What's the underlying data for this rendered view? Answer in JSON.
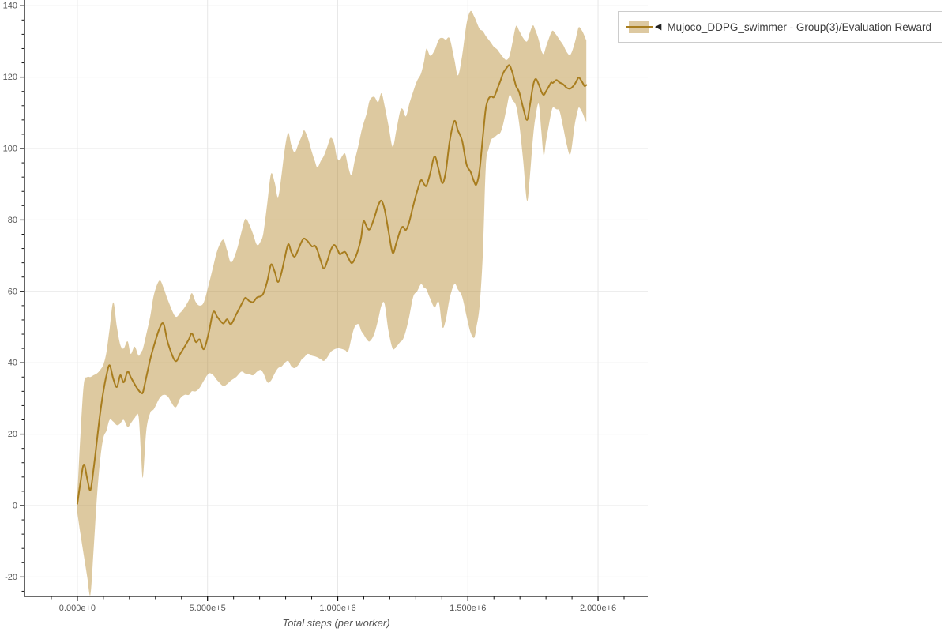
{
  "legend": {
    "collapse_icon": "◀",
    "label": "Mujoco_DDPG_swimmer - Group(3)/Evaluation Reward"
  },
  "colors": {
    "line": "#a87d1e",
    "band": "rgba(180,135,45,0.45)",
    "band_solid": "#ddc9a1",
    "grid": "#e7e7e7",
    "axis": "#111111",
    "tick_label": "#555555"
  },
  "chart_data": {
    "type": "line",
    "title": "",
    "xlabel": "Total steps (per worker)",
    "ylabel": "",
    "xlim": [
      -203000,
      2191000
    ],
    "ylim": [
      -25.45,
      141.6
    ],
    "grid": true,
    "legend_position": "top-right-outside",
    "axes": {
      "x_tick_values": [
        0,
        500000,
        1000000,
        1500000,
        2000000
      ],
      "x_tick_labels": [
        "0.000e+0",
        "5.000e+5",
        "1.000e+6",
        "1.500e+6",
        "2.000e+6"
      ],
      "y_tick_values": [
        -20,
        0,
        20,
        40,
        60,
        80,
        100,
        120,
        140
      ],
      "y_tick_labels": [
        "-20",
        "0",
        "20",
        "40",
        "60",
        "80",
        "100",
        "120",
        "140"
      ],
      "x_minor_step": 100000,
      "x_minor_range": [
        -100000,
        2100000
      ],
      "y_minor_step": 4,
      "y_minor_range": [
        -24,
        140
      ]
    },
    "series": [
      {
        "name": "Mujoco_DDPG_swimmer - Group(3)/Evaluation Reward",
        "x": [
          0,
          12000,
          25000,
          38000,
          50000,
          62000,
          75000,
          88000,
          100000,
          112000,
          124000,
          138000,
          152000,
          165000,
          178000,
          193000,
          205000,
          220000,
          235000,
          245000,
          252000,
          265000,
          280000,
          294000,
          315000,
          331000,
          348000,
          376000,
          395000,
          412000,
          428000,
          440000,
          455000,
          470000,
          486000,
          505000,
          522000,
          538000,
          560000,
          575000,
          590000,
          610000,
          630000,
          645000,
          660000,
          675000,
          690000,
          704000,
          715000,
          730000,
          744000,
          758000,
          771000,
          785000,
          797000,
          810000,
          822000,
          835000,
          850000,
          862000,
          871000,
          885000,
          901000,
          912000,
          922000,
          935000,
          947000,
          960000,
          973000,
          986000,
          997000,
          1008000,
          1018000,
          1029000,
          1040000,
          1053000,
          1065000,
          1080000,
          1090000,
          1099000,
          1112000,
          1123000,
          1140000,
          1155000,
          1168000,
          1180000,
          1195000,
          1211000,
          1225000,
          1240000,
          1250000,
          1262000,
          1275000,
          1290000,
          1305000,
          1320000,
          1332000,
          1341000,
          1355000,
          1372000,
          1388000,
          1402000,
          1415000,
          1430000,
          1448000,
          1462000,
          1478000,
          1495000,
          1510000,
          1524000,
          1533000,
          1545000,
          1557000,
          1569000,
          1580000,
          1590000,
          1600000,
          1612000,
          1625000,
          1636000,
          1648000,
          1660000,
          1672000,
          1685000,
          1697000,
          1712000,
          1727000,
          1738000,
          1750000,
          1760000,
          1772000,
          1782000,
          1791000,
          1800000,
          1812000,
          1820000,
          1827000,
          1840000,
          1852000,
          1866000,
          1880000,
          1894000,
          1910000,
          1920000,
          1927000,
          1940000,
          1948000,
          1955000
        ],
        "mean": [
          0.5,
          6.5,
          11.5,
          7.5,
          4.3,
          10,
          18,
          26,
          32,
          36.5,
          39.3,
          35.5,
          33.2,
          36.5,
          34.5,
          37.5,
          36,
          34,
          32.3,
          31.6,
          31.8,
          36,
          41,
          44.7,
          49.5,
          50.9,
          45.5,
          40.5,
          42.5,
          44.5,
          46.5,
          48.2,
          45.8,
          46.5,
          43.8,
          48.5,
          54.2,
          52.8,
          51,
          52.2,
          50.8,
          53.5,
          56.3,
          58.2,
          57.3,
          57,
          58.3,
          58.6,
          59.5,
          63,
          67.5,
          65.5,
          62.6,
          65.5,
          69.5,
          73.2,
          71,
          69.7,
          72,
          74,
          74.8,
          74,
          72.6,
          72.8,
          71.5,
          68.5,
          66.4,
          68.5,
          71.5,
          73,
          72,
          70.4,
          70.8,
          71,
          69.5,
          67.9,
          69,
          72,
          75,
          79.6,
          78,
          77.4,
          80.5,
          84,
          85.4,
          83,
          77,
          70.8,
          73.5,
          77,
          78.1,
          77.2,
          79.5,
          84,
          88,
          91.1,
          90,
          89.6,
          93,
          97.8,
          94,
          90.3,
          93.5,
          102,
          107.7,
          105,
          102.2,
          95.5,
          93.5,
          90.7,
          90,
          94,
          103,
          111.3,
          114,
          114.6,
          114.4,
          116.5,
          119,
          121.2,
          122.5,
          123.3,
          121,
          117.5,
          115.8,
          111.5,
          108,
          112,
          117.5,
          119.5,
          118,
          116,
          115,
          116,
          117.5,
          118.5,
          118.4,
          119.2,
          118.5,
          118,
          117,
          116.8,
          118,
          119.3,
          119.9,
          118.5,
          117.5,
          117.8
        ],
        "band_low": [
          -2,
          -8,
          -14,
          -20,
          -25,
          -13,
          2,
          13,
          19,
          21,
          24,
          23.5,
          22.5,
          23,
          24,
          22,
          23,
          24.5,
          25,
          14,
          8,
          21,
          26,
          27,
          30,
          31,
          30.5,
          27.5,
          30,
          31,
          31,
          32,
          32,
          33,
          35,
          37,
          36.5,
          35,
          33.5,
          34,
          35,
          36,
          37.5,
          37,
          36.8,
          36.5,
          37.5,
          38,
          37,
          34.5,
          35,
          37,
          38.5,
          39,
          40,
          40.5,
          39,
          38.5,
          39.5,
          41,
          41.5,
          42.5,
          42,
          41.8,
          41.5,
          41,
          40.5,
          41.5,
          43,
          43.7,
          44,
          44,
          43.8,
          43.5,
          43.2,
          47,
          50,
          50.8,
          49,
          48,
          46.5,
          46,
          48,
          52,
          56,
          56.5,
          49,
          44,
          44.5,
          45.8,
          46.5,
          49,
          53,
          58.5,
          60,
          62,
          61,
          60.5,
          58,
          55.5,
          57,
          50,
          52,
          58,
          62,
          60.5,
          58.5,
          53,
          48.5,
          47,
          50,
          56,
          70,
          95,
          100,
          102.5,
          103,
          103.8,
          104.5,
          107,
          111,
          115,
          113.5,
          112,
          107,
          97,
          85.4,
          92,
          103,
          109,
          112.5,
          105,
          98,
          102,
          107,
          110,
          111.5,
          111,
          110.5,
          106,
          101,
          98.5,
          106.5,
          110,
          111.5,
          110,
          108.5,
          107.5
        ],
        "band_high": [
          3,
          20,
          34,
          36,
          36,
          36.5,
          37,
          38,
          39.5,
          43,
          49.5,
          56.9,
          50,
          45,
          44,
          46,
          42.5,
          44.5,
          42,
          43,
          44,
          48,
          53,
          59,
          63,
          61,
          57.5,
          53,
          54,
          55.5,
          57.5,
          59.5,
          57,
          56,
          57,
          62,
          67,
          71.5,
          74.5,
          71.5,
          68.1,
          71,
          76.5,
          80.3,
          78.8,
          76,
          73,
          74,
          76.5,
          85,
          92.9,
          90.5,
          86.4,
          93,
          100,
          104.4,
          101,
          98.9,
          101.5,
          103.5,
          105.1,
          103,
          99,
          96.5,
          94.7,
          96.5,
          98,
          100.5,
          103,
          101.5,
          97.5,
          96.8,
          98,
          98.5,
          95,
          92.5,
          96.5,
          101,
          104.5,
          107,
          110,
          113.5,
          114.5,
          113,
          115.5,
          112,
          106.5,
          100.5,
          105,
          110.5,
          111,
          109,
          112.5,
          116,
          119,
          121,
          124.5,
          128,
          126,
          127.5,
          130.5,
          131,
          130.5,
          130.8,
          125,
          120.5,
          126,
          135,
          138.5,
          137,
          135.5,
          133.5,
          132.9,
          131.5,
          130.5,
          129.5,
          128.5,
          127.8,
          126.5,
          125.5,
          124.8,
          126,
          130,
          134.3,
          133,
          131,
          130,
          132.5,
          134.5,
          133,
          130.5,
          127.5,
          126.5,
          128.5,
          131,
          132.5,
          133,
          131.8,
          130.5,
          129,
          127,
          126.3,
          129.5,
          132.5,
          134,
          132.8,
          131.5,
          130.3
        ]
      }
    ]
  }
}
